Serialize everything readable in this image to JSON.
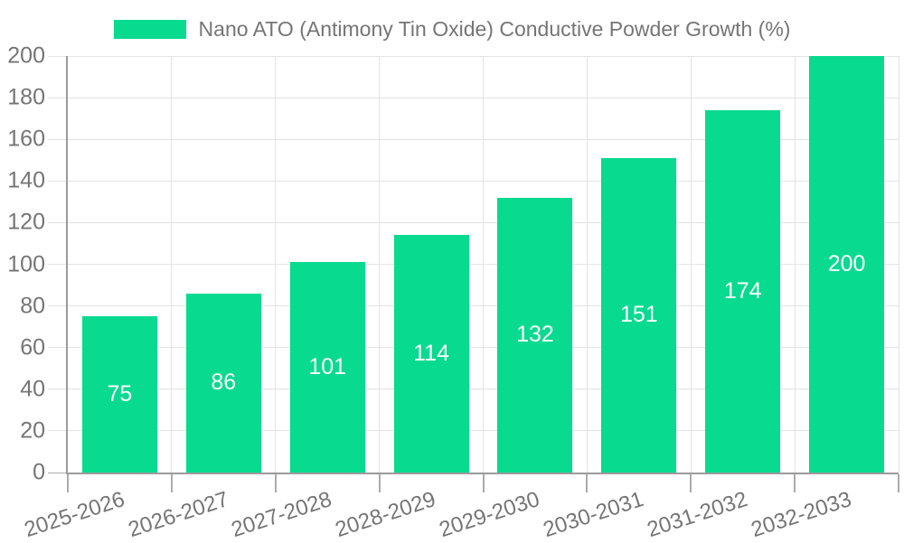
{
  "chart_data": {
    "type": "bar",
    "legend": "Nano ATO (Antimony Tin Oxide) Conductive Powder Growth (%)",
    "legend_position": "top",
    "categories": [
      "2025-2026",
      "2026-2027",
      "2027-2028",
      "2028-2029",
      "2029-2030",
      "2030-2031",
      "2031-2032",
      "2032-2033"
    ],
    "values": [
      75,
      86,
      101,
      114,
      132,
      151,
      174,
      200
    ],
    "yticks": [
      0,
      20,
      40,
      60,
      80,
      100,
      120,
      140,
      160,
      180,
      200
    ],
    "ylim": [
      0,
      200
    ],
    "grid": true,
    "bar_labels_inside": true,
    "x_label_rotation_deg": -18,
    "colors": {
      "bar": "#08da90",
      "bar_label": "#ffffff",
      "axis": "#9b9b9b",
      "grid": "#e3e3e3",
      "x_tick": "#ababab",
      "tick_label": "#757575",
      "legend_text": "#757575",
      "background": "#ffffff"
    }
  }
}
